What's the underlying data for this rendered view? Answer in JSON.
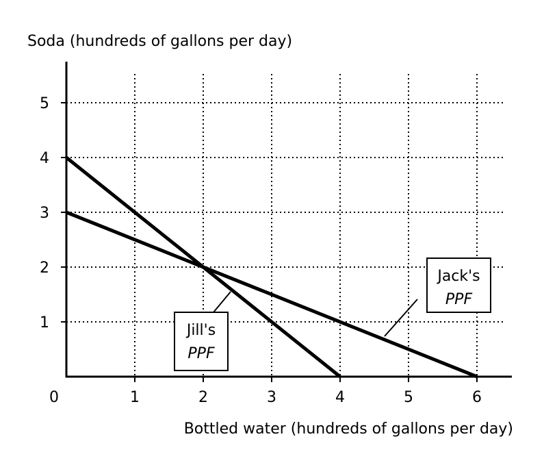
{
  "chart_data": {
    "type": "line",
    "xlabel": "Bottled water (hundreds of gallons per day)",
    "ylabel": "Soda (hundreds of gallons per day)",
    "origin_label": "0",
    "xlim": [
      0,
      6.5
    ],
    "ylim": [
      0,
      5.75
    ],
    "x_ticks": [
      1,
      2,
      3,
      4,
      5,
      6
    ],
    "x_tick_labels": [
      "1",
      "2",
      "3",
      "4",
      "5",
      "6"
    ],
    "y_ticks": [
      1,
      2,
      3,
      4,
      5
    ],
    "y_tick_labels": [
      "1",
      "2",
      "3",
      "4",
      "5"
    ],
    "grid": true,
    "grid_style": "dotted",
    "series": [
      {
        "points": [
          [
            0,
            4
          ],
          [
            4,
            0
          ]
        ],
        "label_line1": "Jill's",
        "label_line2": "PPF"
      },
      {
        "points": [
          [
            0,
            3
          ],
          [
            6,
            0
          ]
        ],
        "label_line1": "Jack's",
        "label_line2": "PPF"
      }
    ],
    "colors": {
      "line": "#000000",
      "grid": "#000000",
      "background": "#ffffff"
    }
  }
}
